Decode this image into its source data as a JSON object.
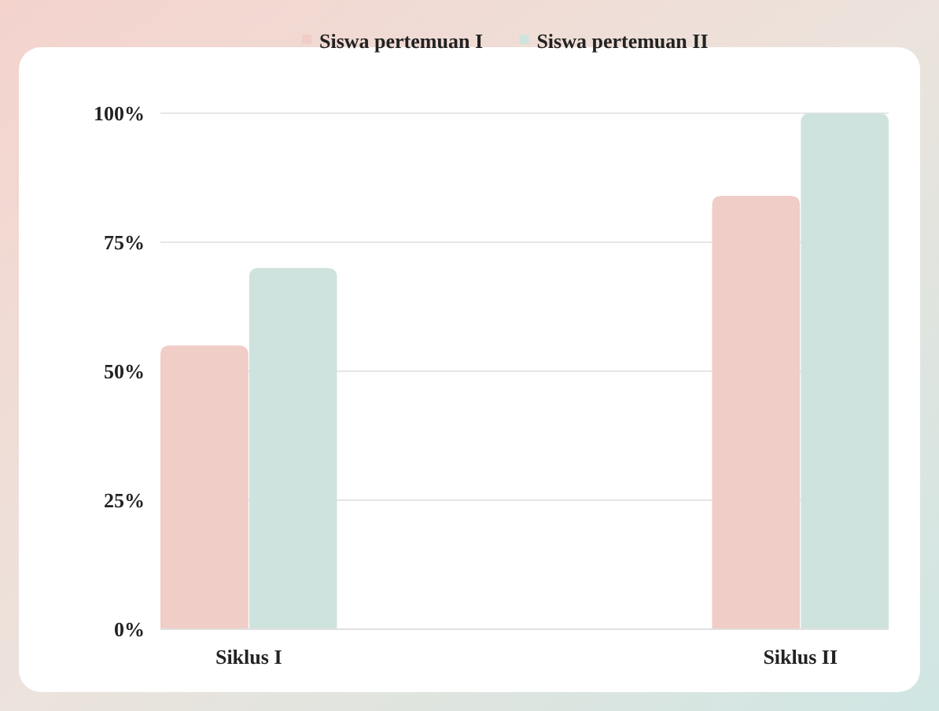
{
  "chart_data": {
    "type": "bar",
    "categories": [
      "Siklus I",
      "Siklus II"
    ],
    "series": [
      {
        "name": "Siswa pertemuan I",
        "color": "#f0cdc6",
        "values": [
          55,
          84
        ]
      },
      {
        "name": "Siswa pertemuan II",
        "color": "#cfe3de",
        "values": [
          70,
          100
        ]
      }
    ],
    "ylim": [
      0,
      100
    ],
    "yticks": [
      {
        "value": 0,
        "label": "0%"
      },
      {
        "value": 25,
        "label": "25%"
      },
      {
        "value": 50,
        "label": "50%"
      },
      {
        "value": 75,
        "label": "75%"
      },
      {
        "value": 100,
        "label": "100%"
      }
    ],
    "grid": "y",
    "legend": "top"
  }
}
